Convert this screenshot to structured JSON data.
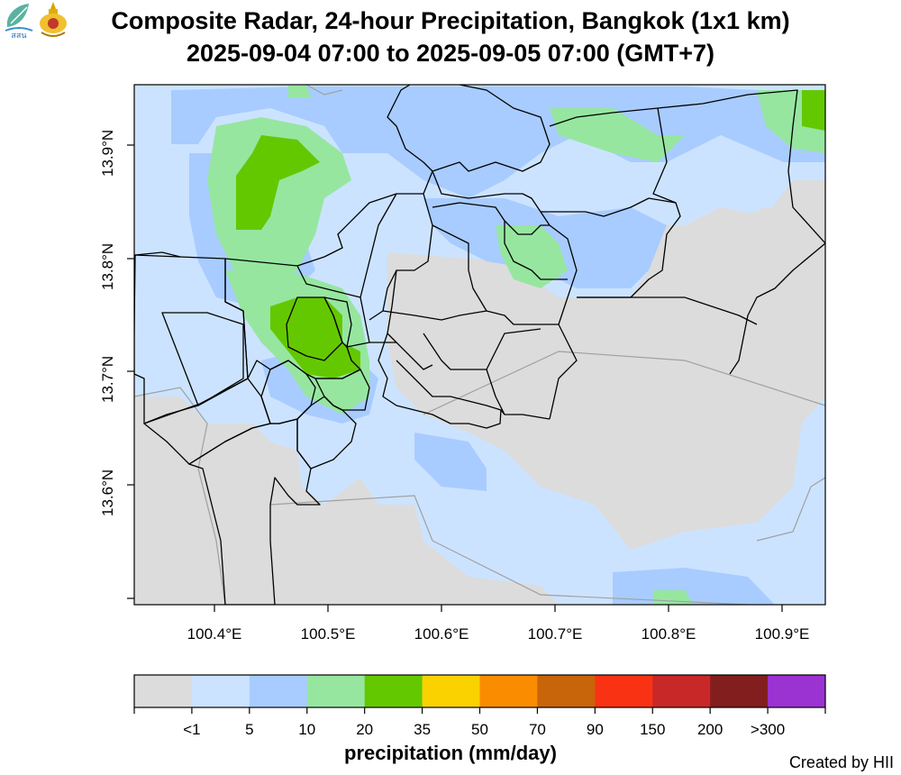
{
  "header": {
    "title_line1": "Composite Radar, 24-hour Precipitation, Bangkok (1x1 km)",
    "title_line2": "2025-09-04 07:00 to 2025-09-05 07:00 (GMT+7)",
    "logos": [
      {
        "name": "agency-logo",
        "text": "สสน"
      },
      {
        "name": "royal-emblem-logo",
        "text": ""
      }
    ]
  },
  "map": {
    "y_ticks": [
      "13.9°N",
      "13.8°N",
      "13.7°N",
      "13.6°N"
    ],
    "x_ticks": [
      "100.4°E",
      "100.5°E",
      "100.6°E",
      "100.7°E",
      "100.8°E",
      "100.9°E"
    ]
  },
  "legend": {
    "title": "precipitation (mm/day)",
    "labels": [
      "<1",
      "5",
      "10",
      "20",
      "35",
      "50",
      "70",
      "90",
      "150",
      "200",
      ">300"
    ],
    "colors": [
      "#dcdcdc",
      "#cce3ff",
      "#a8ccff",
      "#96e6a0",
      "#64c800",
      "#fad200",
      "#fa8c00",
      "#c8640a",
      "#fa3214",
      "#c82828",
      "#821e1e",
      "#9b32d2"
    ]
  },
  "footer": {
    "credit": "Created by HII"
  }
}
